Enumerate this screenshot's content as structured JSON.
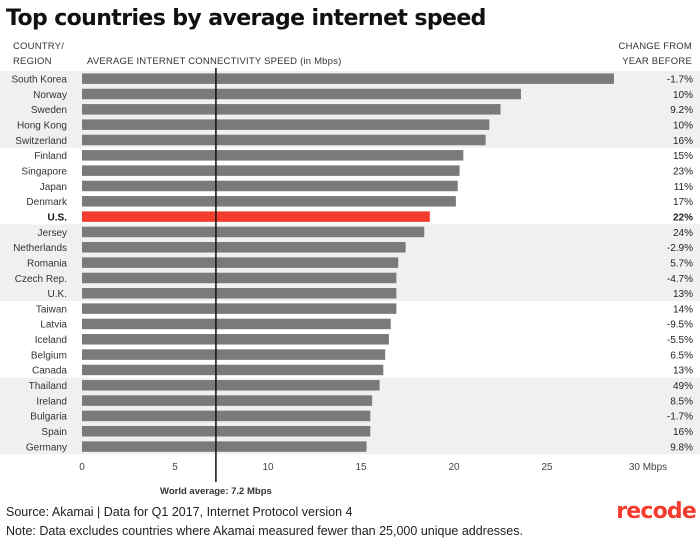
{
  "title": "Top countries by average internet speed",
  "headers": {
    "country_line1": "COUNTRY/",
    "country_line2": "REGION",
    "speed_axis": "AVERAGE INTERNET CONNECTIVITY SPEED (in Mbps)",
    "change_line1": "CHANGE FROM",
    "change_line2": "YEAR BEFORE"
  },
  "world_average_label": "World average: 7.2 Mbps",
  "footer": {
    "source": "Source: Akamai | Data for Q1 2017, Internet Protocol version 4",
    "note": "Note: Data excludes countries where Akamai measured fewer than 25,000 unique addresses."
  },
  "logo": "recode",
  "colors": {
    "bar": "#7a7a7a",
    "highlight": "#f23d2e",
    "band": "#f0f0f0",
    "average_line": "#111111"
  },
  "chart_data": {
    "type": "bar",
    "orientation": "horizontal",
    "xlim": [
      0,
      30
    ],
    "x_ticks": [
      "0",
      "5",
      "10",
      "15",
      "20",
      "25",
      "30 Mbps"
    ],
    "world_average": 7.2,
    "highlight": "U.S.",
    "categories": [
      "South Korea",
      "Norway",
      "Sweden",
      "Hong Kong",
      "Switzerland",
      "Finland",
      "Singapore",
      "Japan",
      "Denmark",
      "U.S.",
      "Jersey",
      "Netherlands",
      "Romania",
      "Czech Rep.",
      "U.K.",
      "Taiwan",
      "Latvia",
      "Iceland",
      "Belgium",
      "Canada",
      "Thailand",
      "Ireland",
      "Bulgaria",
      "Spain",
      "Germany"
    ],
    "values": [
      28.6,
      23.6,
      22.5,
      21.9,
      21.7,
      20.5,
      20.3,
      20.2,
      20.1,
      18.7,
      18.4,
      17.4,
      17.0,
      16.9,
      16.9,
      16.9,
      16.6,
      16.5,
      16.3,
      16.2,
      16.0,
      15.6,
      15.5,
      15.5,
      15.3
    ],
    "change": [
      "-1.7%",
      "10%",
      "9.2%",
      "10%",
      "16%",
      "15%",
      "23%",
      "11%",
      "17%",
      "22%",
      "24%",
      "-2.9%",
      "5.7%",
      "-4.7%",
      "13%",
      "14%",
      "-9.5%",
      "-5.5%",
      "6.5%",
      "13%",
      "49%",
      "8.5%",
      "-1.7%",
      "16%",
      "9.8%"
    ]
  }
}
